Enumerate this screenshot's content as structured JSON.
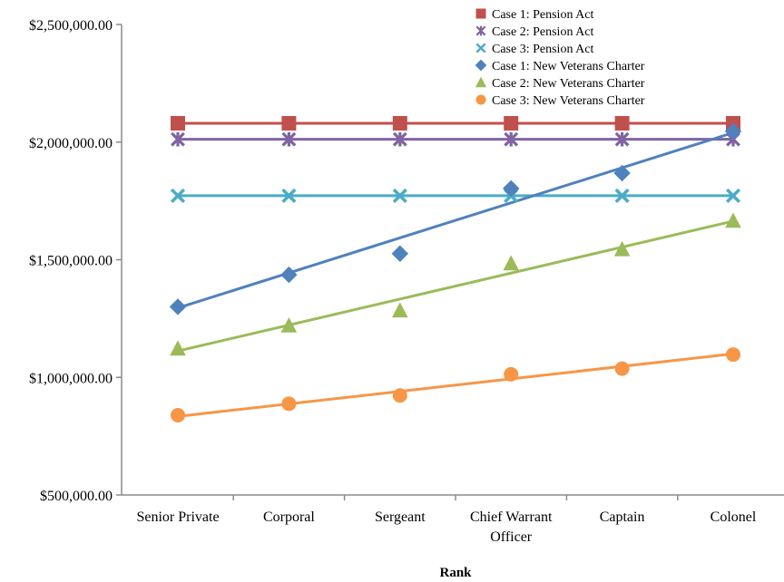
{
  "chart_data": {
    "type": "line",
    "title": "",
    "xlabel": "Rank",
    "ylabel": "",
    "categories": [
      "Senior Private",
      "Corporal",
      "Sergeant",
      "Chief Warrant Officer",
      "Captain",
      "Colonel"
    ],
    "category_lines": [
      [
        "Senior Private"
      ],
      [
        "Corporal"
      ],
      [
        "Sergeant"
      ],
      [
        "Chief Warrant",
        "Officer"
      ],
      [
        "Captain"
      ],
      [
        "Colonel"
      ]
    ],
    "y_ticks": [
      "$500,000.00",
      "$1,000,000.00",
      "$1,500,000.00",
      "$2,000,000.00",
      "$2,500,000.00"
    ],
    "y_tick_values": [
      500000,
      1000000,
      1500000,
      2000000,
      2500000
    ],
    "ylim": [
      500000,
      2500000
    ],
    "grid": false,
    "legend_position": "top-right",
    "series": [
      {
        "name": "Case 1: Pension Act",
        "color": "#c0504d",
        "marker": "square",
        "values": [
          2080000,
          2080000,
          2080000,
          2080000,
          2080000,
          2080000
        ],
        "trend": [
          2080000,
          2080000
        ]
      },
      {
        "name": "Case 2: Pension Act",
        "color": "#8064a2",
        "marker": "star",
        "values": [
          2012000,
          2012000,
          2012000,
          2012000,
          2012000,
          2012000
        ],
        "trend": [
          2012000,
          2012000
        ]
      },
      {
        "name": "Case 3: Pension Act",
        "color": "#4bacc6",
        "marker": "x",
        "values": [
          1772000,
          1772000,
          1772000,
          1772000,
          1772000,
          1772000
        ],
        "trend": [
          1772000,
          1772000
        ]
      },
      {
        "name": "Case 1: New Veterans Charter",
        "color": "#4f81bd",
        "marker": "diamond",
        "values": [
          1300000,
          1436000,
          1526000,
          1803000,
          1868000,
          2046000
        ],
        "trend": [
          1295000,
          2040000
        ]
      },
      {
        "name": "Case 2: New Veterans Charter",
        "color": "#9bbb59",
        "marker": "triangle",
        "values": [
          1122000,
          1220000,
          1284000,
          1484000,
          1544000,
          1665000
        ],
        "trend": [
          1112000,
          1664000
        ]
      },
      {
        "name": "Case 3: New Veterans Charter",
        "color": "#f79646",
        "marker": "circle",
        "values": [
          839000,
          888000,
          923000,
          1013000,
          1037000,
          1097000
        ],
        "trend": [
          834000,
          1100000
        ]
      }
    ]
  }
}
